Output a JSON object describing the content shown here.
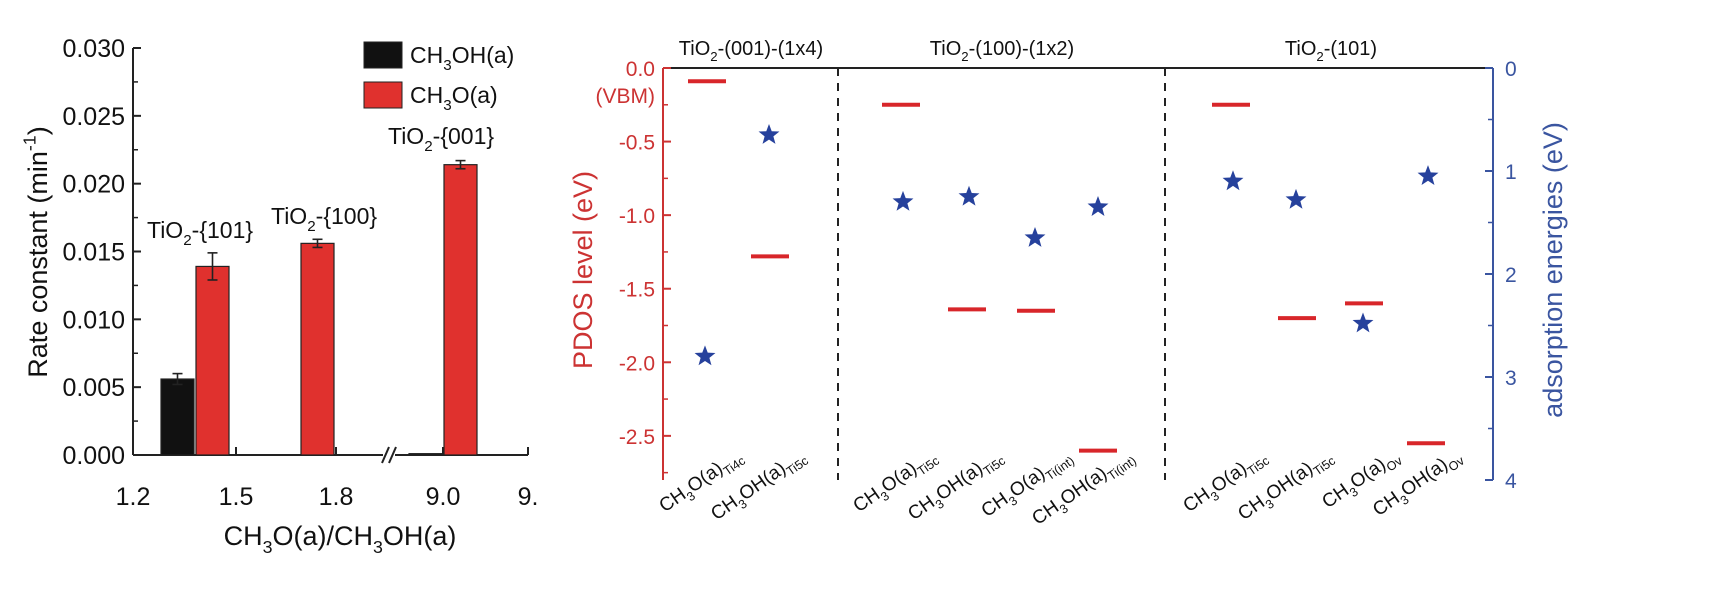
{
  "chart_data": [
    {
      "type": "bar",
      "x": [
        1.35,
        1.65,
        9.0
      ],
      "xlabel": "CH3O(a)/CH3OH(a)",
      "xlabel_runs": [
        {
          "t": "CH",
          "sub": false
        },
        {
          "t": "3",
          "sub": true
        },
        {
          "t": "O(a)/CH",
          "sub": false
        },
        {
          "t": "3",
          "sub": true
        },
        {
          "t": "OH(a)",
          "sub": false
        }
      ],
      "xticks": [
        "1.2",
        "1.5",
        "1.8",
        "9.0",
        "9."
      ],
      "x_break": true,
      "ylabel": "Rate constant (min-1)",
      "ylabel_runs": [
        {
          "t": "Rate constant (min",
          "sub": false
        },
        {
          "t": "-1",
          "sup": true
        },
        {
          "t": ")",
          "sub": false
        }
      ],
      "ylim": [
        0,
        0.03
      ],
      "yticks": [
        "0.000",
        "0.005",
        "0.010",
        "0.015",
        "0.020",
        "0.025",
        "0.030"
      ],
      "legend_position": "top-right",
      "series": [
        {
          "name": "CH3OH(a)",
          "name_runs": [
            {
              "t": "CH",
              "sub": false
            },
            {
              "t": "3",
              "sub": true
            },
            {
              "t": "OH(a)",
              "sub": false
            }
          ],
          "color": "#111111",
          "values": [
            0.0056,
            0.0,
            0.0001
          ],
          "errors": [
            0.0004,
            0.0,
            0.0
          ]
        },
        {
          "name": "CH3O(a)",
          "name_runs": [
            {
              "t": "CH",
              "sub": false
            },
            {
              "t": "3",
              "sub": true
            },
            {
              "t": "O(a)",
              "sub": false
            }
          ],
          "color": "#e0312e",
          "values": [
            0.0139,
            0.0156,
            0.0214
          ],
          "errors": [
            0.001,
            0.0003,
            0.0003
          ]
        }
      ],
      "annotations": [
        {
          "runs": [
            {
              "t": "TiO",
              "sub": false
            },
            {
              "t": "2",
              "sub": true
            },
            {
              "t": "-{101}",
              "sub": false
            }
          ],
          "group": 0
        },
        {
          "runs": [
            {
              "t": "TiO",
              "sub": false
            },
            {
              "t": "2",
              "sub": true
            },
            {
              "t": "-{100}",
              "sub": false
            }
          ],
          "group": 1
        },
        {
          "runs": [
            {
              "t": "TiO",
              "sub": false
            },
            {
              "t": "2",
              "sub": true
            },
            {
              "t": "-{001}",
              "sub": false
            }
          ],
          "group": 2
        }
      ]
    },
    {
      "type": "scatter",
      "categories": [
        "CH3O(a)Ti4c",
        "CH3OH(a)Ti5c",
        "CH3O(a)Ti5c",
        "CH3OH(a)Ti5c",
        "CH3O(a)Ti(int)",
        "CH3OH(a)Ti(int)",
        "CH3O(a)Ti5c",
        "CH3OH(a)Ti5c",
        "CH3O(a)Ov",
        "CH3OH(a)Ov"
      ],
      "category_runs": [
        [
          {
            "t": "CH"
          },
          {
            "t": "3",
            "sub": true
          },
          {
            "t": "O(a)"
          },
          {
            "t": "Ti4c",
            "sub": true
          }
        ],
        [
          {
            "t": "CH"
          },
          {
            "t": "3",
            "sub": true
          },
          {
            "t": "OH(a)"
          },
          {
            "t": "Ti5c",
            "sub": true
          }
        ],
        [
          {
            "t": "CH"
          },
          {
            "t": "3",
            "sub": true
          },
          {
            "t": "O(a)"
          },
          {
            "t": "Ti5c",
            "sub": true
          }
        ],
        [
          {
            "t": "CH"
          },
          {
            "t": "3",
            "sub": true
          },
          {
            "t": "OH(a)"
          },
          {
            "t": "Ti5c",
            "sub": true
          }
        ],
        [
          {
            "t": "CH"
          },
          {
            "t": "3",
            "sub": true
          },
          {
            "t": "O(a)"
          },
          {
            "t": "Ti(int)",
            "sub": true
          }
        ],
        [
          {
            "t": "CH"
          },
          {
            "t": "3",
            "sub": true
          },
          {
            "t": "OH(a)"
          },
          {
            "t": "Ti(int)",
            "sub": true
          }
        ],
        [
          {
            "t": "CH"
          },
          {
            "t": "3",
            "sub": true
          },
          {
            "t": "O(a)"
          },
          {
            "t": "Ti5c",
            "sub": true
          }
        ],
        [
          {
            "t": "CH"
          },
          {
            "t": "3",
            "sub": true
          },
          {
            "t": "OH(a)"
          },
          {
            "t": "Ti5c",
            "sub": true
          }
        ],
        [
          {
            "t": "CH"
          },
          {
            "t": "3",
            "sub": true
          },
          {
            "t": "O(a)"
          },
          {
            "t": "Ov",
            "sub": true
          }
        ],
        [
          {
            "t": "CH"
          },
          {
            "t": "3",
            "sub": true
          },
          {
            "t": "OH(a)"
          },
          {
            "t": "Ov",
            "sub": true
          }
        ]
      ],
      "panels": [
        {
          "runs": [
            {
              "t": "TiO"
            },
            {
              "t": "2",
              "sub": true
            },
            {
              "t": "-(001)-(1x4)"
            }
          ],
          "categories": [
            0,
            1
          ]
        },
        {
          "runs": [
            {
              "t": "TiO"
            },
            {
              "t": "2",
              "sub": true
            },
            {
              "t": "-(100)-(1x2)"
            }
          ],
          "categories": [
            2,
            3,
            4,
            5
          ]
        },
        {
          "runs": [
            {
              "t": "TiO"
            },
            {
              "t": "2",
              "sub": true
            },
            {
              "t": "-(101)"
            }
          ],
          "categories": [
            6,
            7,
            8,
            9
          ]
        }
      ],
      "ylabel_left": "PDOS level (eV)",
      "ylabel_right": "adsorption energies (eV)",
      "ylim_left": [
        -2.8,
        0.0
      ],
      "ylim_right": [
        4,
        0
      ],
      "yticks_left": [
        "0.0",
        "-0.5",
        "-1.0",
        "-1.5",
        "-2.0",
        "-2.5"
      ],
      "yticks_right": [
        "0",
        "1",
        "2",
        "3",
        "4"
      ],
      "vbm_label": "(VBM)",
      "left_axis_color": "#cc3333",
      "right_axis_color": "#3a55a0",
      "pdos_series": {
        "marker": "bar",
        "color": "#d8262a",
        "values": [
          -0.09,
          -1.28,
          -0.25,
          -1.64,
          -1.65,
          -2.6,
          -0.25,
          -1.7,
          -1.6,
          -2.55
        ]
      },
      "adsorption_series": {
        "marker": "star",
        "color": "#26419c",
        "values": [
          2.8,
          0.65,
          1.3,
          1.25,
          1.65,
          1.35,
          1.1,
          1.28,
          2.48,
          1.05
        ]
      }
    }
  ]
}
